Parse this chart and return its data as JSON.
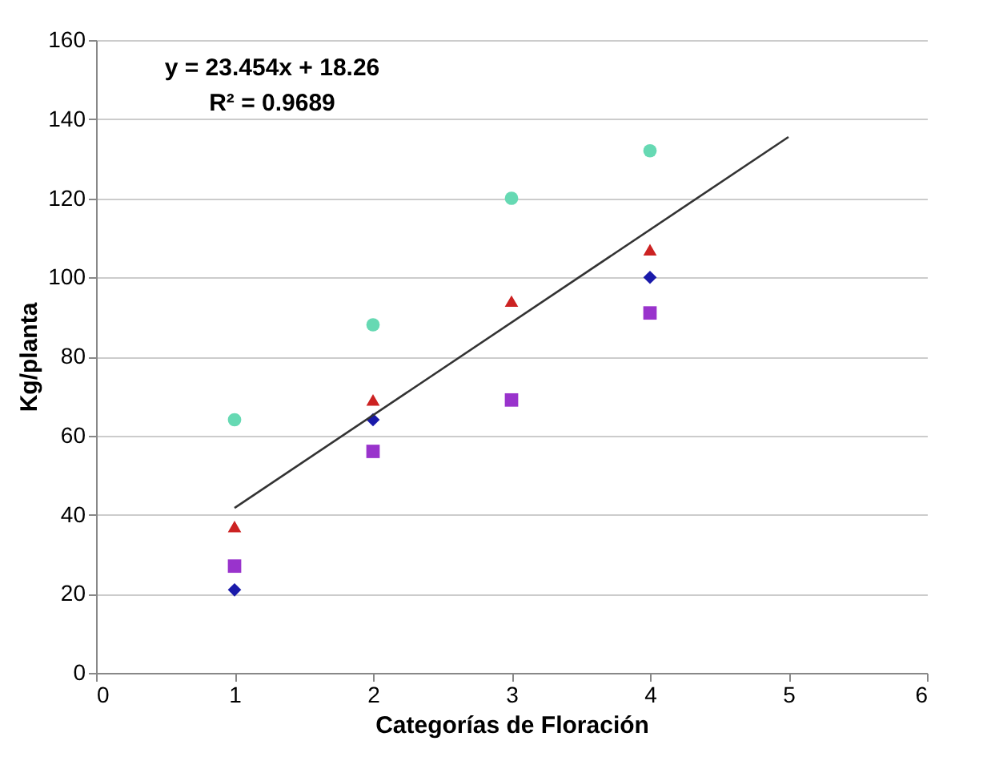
{
  "chart_data": {
    "type": "scatter",
    "xlabel": "Categorías de Floración",
    "ylabel": "Kg/planta",
    "x": [
      1,
      2,
      3,
      4
    ],
    "series": [
      {
        "color": "#66d9b3",
        "marker": "circle",
        "values": [
          64,
          88,
          120,
          132
        ]
      },
      {
        "color": "#cc2222",
        "marker": "triangle",
        "values": [
          37,
          69,
          94,
          107
        ]
      },
      {
        "color": "#1a1aaa",
        "marker": "diamond",
        "values": [
          21,
          64,
          null,
          100
        ]
      },
      {
        "color": "#9933cc",
        "marker": "square",
        "values": [
          27,
          56,
          69,
          91
        ]
      },
      {
        "type": "line",
        "color": "#333333",
        "marker": "none",
        "x": [
          1,
          5
        ],
        "values": [
          41.7,
          135.5
        ]
      }
    ],
    "annotations": [
      "y = 23.454x + 18.26",
      "R² = 0.9689"
    ],
    "xlim": [
      0,
      6
    ],
    "xticks": [
      0,
      1,
      2,
      3,
      4,
      5,
      6
    ],
    "ylim": [
      0,
      160
    ],
    "yticks": [
      0,
      20,
      40,
      60,
      80,
      100,
      120,
      140,
      160
    ],
    "grid": "y"
  }
}
